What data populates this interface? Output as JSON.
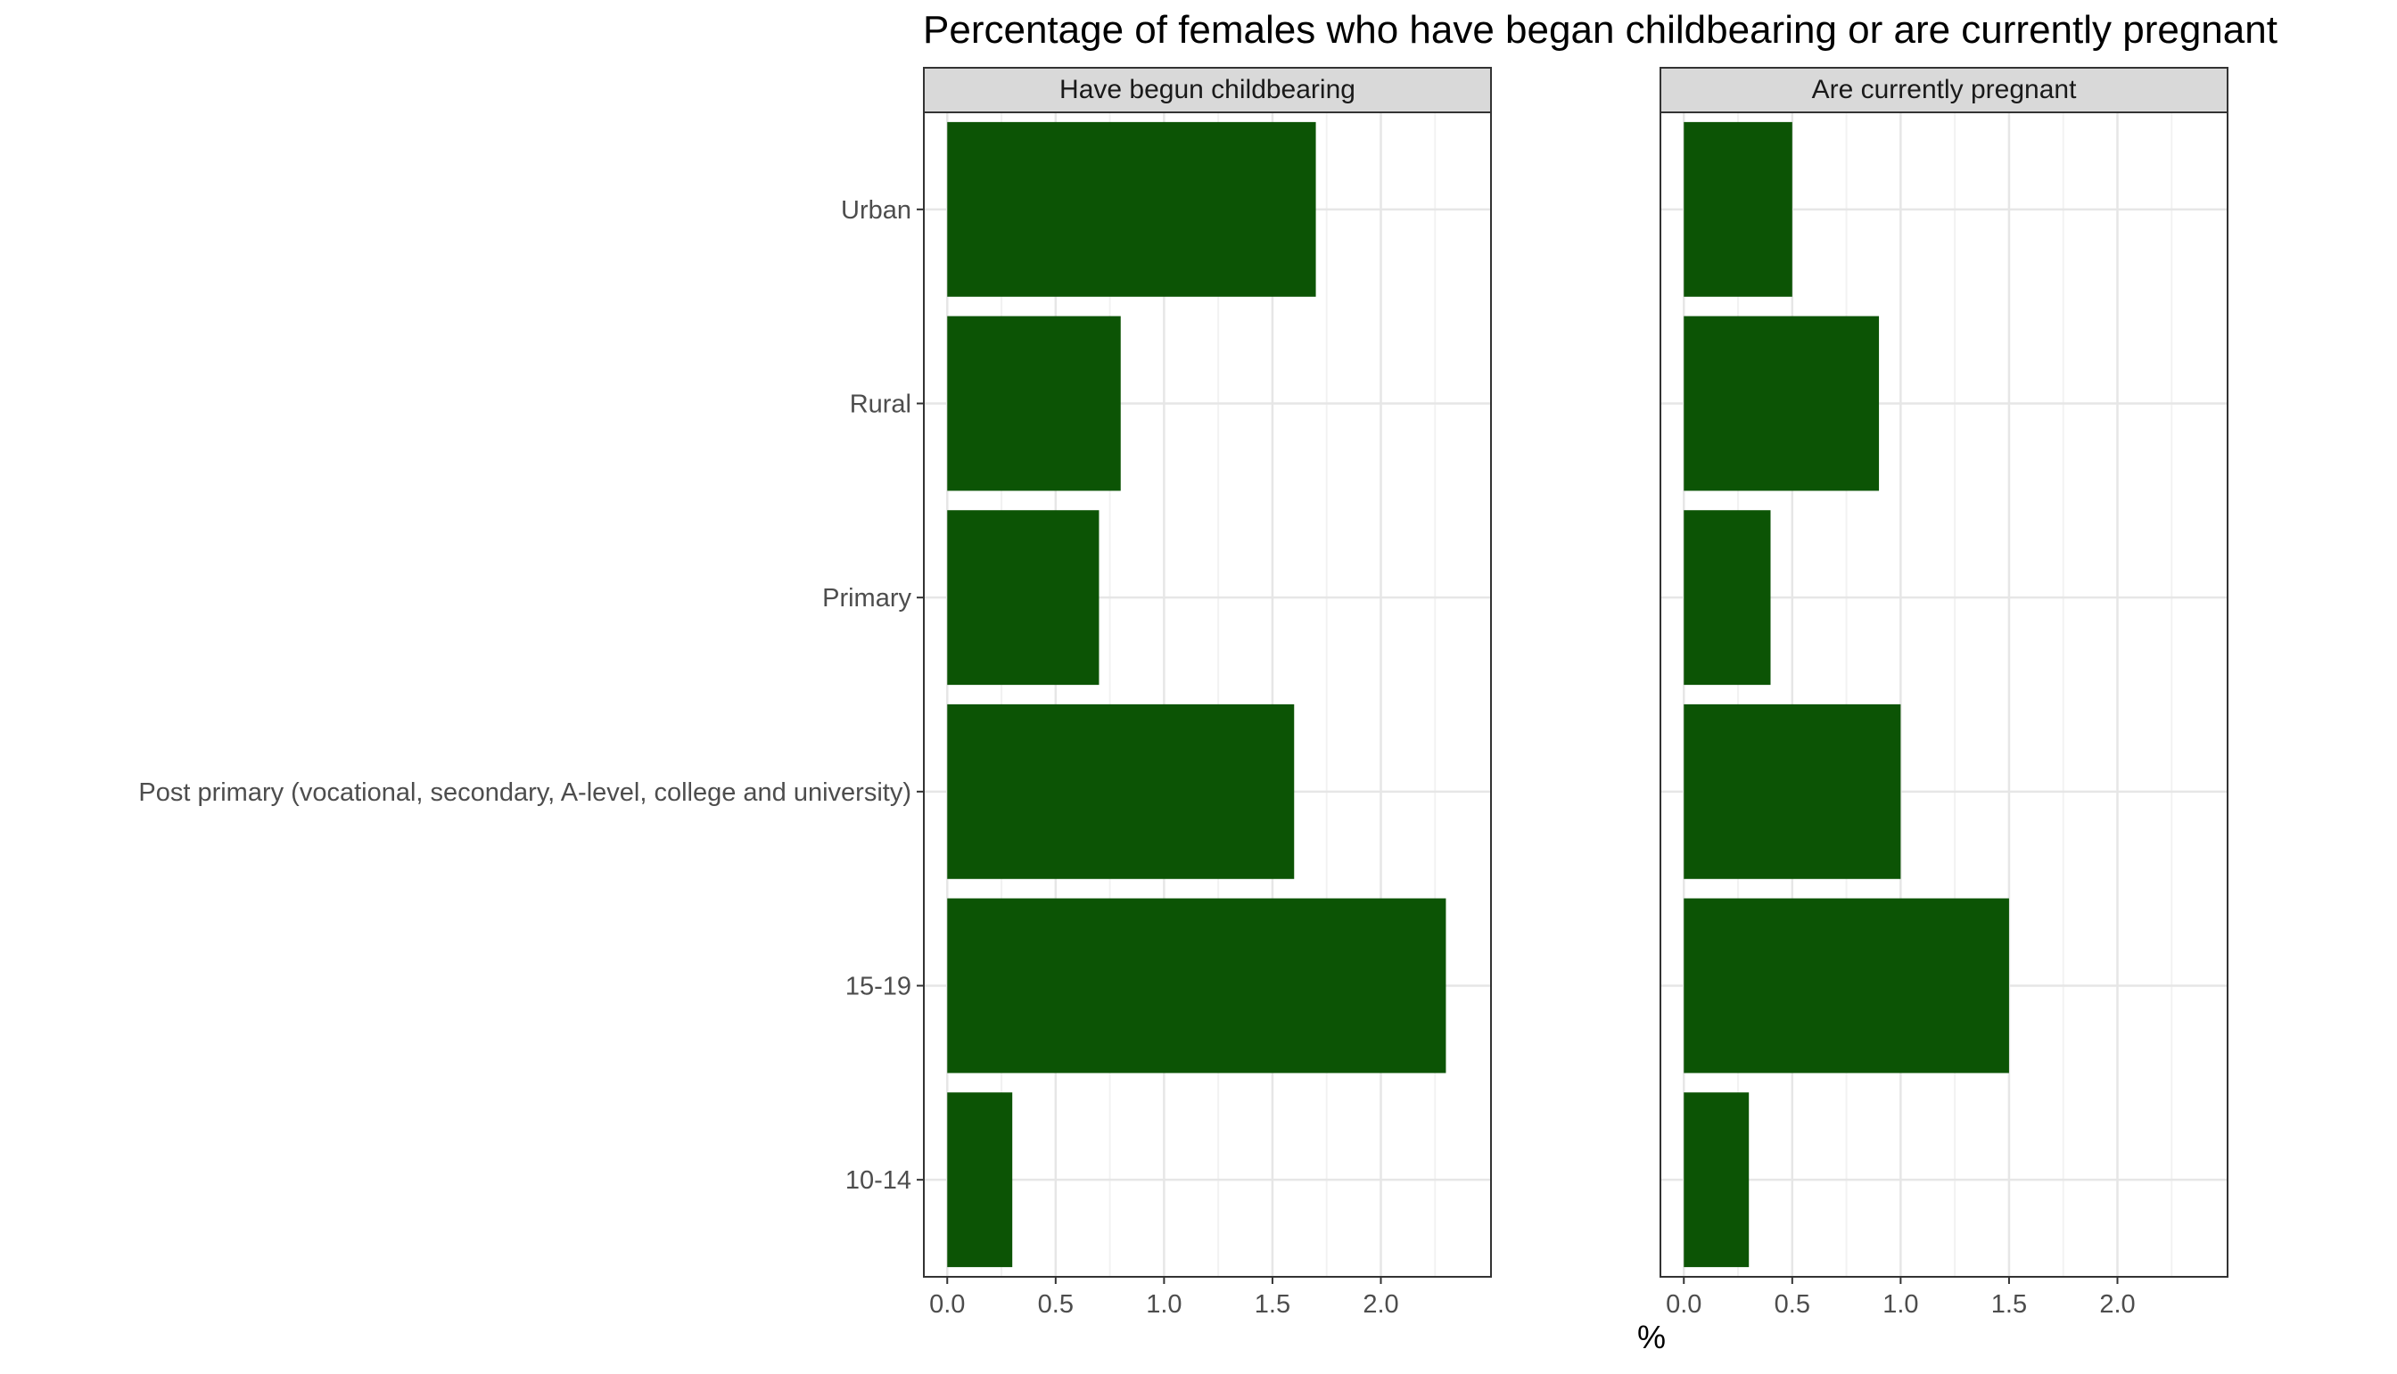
{
  "chart_data": {
    "type": "bar",
    "orientation": "horizontal",
    "title": "Percentage of females who have began childbearing or are currently pregnant",
    "xlabel": "%",
    "ylabel": "",
    "categories": [
      "Urban",
      "Rural",
      "Primary",
      "Post primary (vocational, secondary, A-level, college and university)",
      "15-19",
      "10-14"
    ],
    "xlim": [
      0,
      2.4
    ],
    "x_ticks": [
      "0.0",
      "0.5",
      "1.0",
      "1.5",
      "2.0"
    ],
    "grid": true,
    "bar_color": "#0c5405",
    "panels": [
      {
        "name": "Have begun childbearing",
        "values": [
          1.7,
          0.8,
          0.7,
          1.6,
          2.3,
          0.3
        ]
      },
      {
        "name": "Are currently pregnant",
        "values": [
          0.5,
          0.9,
          0.4,
          1.0,
          1.5,
          0.3
        ]
      }
    ]
  }
}
